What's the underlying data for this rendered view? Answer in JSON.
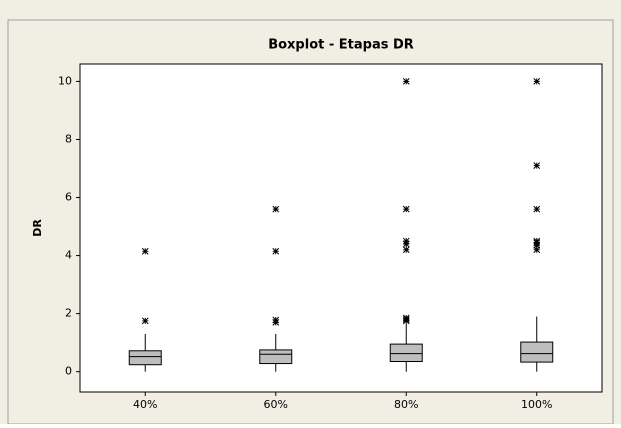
{
  "chart_data": {
    "type": "box",
    "title": "Boxplot - Etapas DR",
    "y_label": "DR",
    "categories": [
      "40%",
      "60%",
      "80%",
      "100%"
    ],
    "color": "#bebebe",
    "boxes": [
      {
        "min": 0,
        "q1": 0.24,
        "median": 0.52,
        "q3": 0.72,
        "max": 1.3,
        "outliers": [
          1.75,
          4.15
        ]
      },
      {
        "min": 0,
        "q1": 0.28,
        "median": 0.6,
        "q3": 0.75,
        "max": 1.3,
        "outliers": [
          1.7,
          1.78,
          4.15,
          5.6
        ]
      },
      {
        "min": 0,
        "q1": 0.35,
        "median": 0.62,
        "q3": 0.95,
        "max": 1.65,
        "outliers": [
          1.75,
          1.8,
          1.85,
          4.2,
          4.4,
          4.5,
          5.6,
          10
        ]
      },
      {
        "min": 0,
        "q1": 0.33,
        "median": 0.62,
        "q3": 1.02,
        "max": 1.9,
        "outliers": [
          4.2,
          4.35,
          4.45,
          4.5,
          5.6,
          7.1,
          10
        ]
      }
    ],
    "ylim": [
      -0.7,
      10.6
    ],
    "yticks": [
      0,
      2,
      4,
      6,
      8,
      10
    ],
    "grid": false
  }
}
